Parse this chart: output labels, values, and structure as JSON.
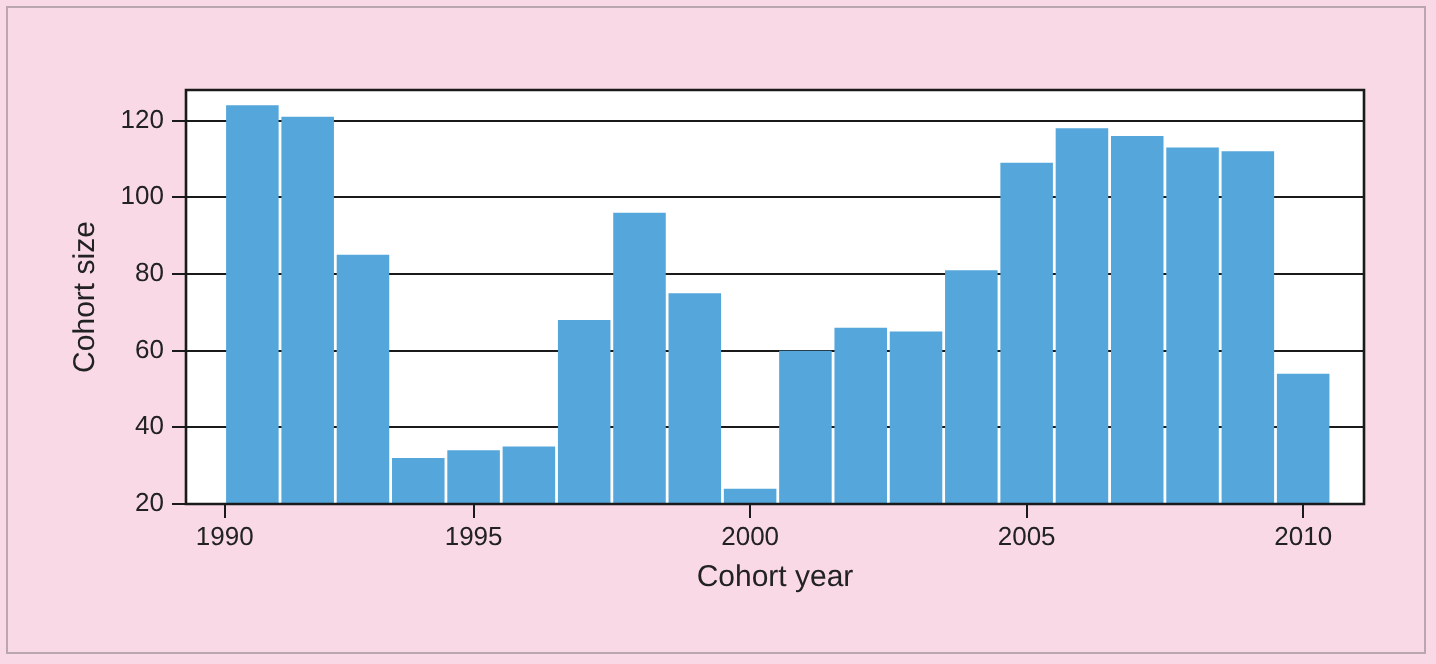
{
  "chart_data": {
    "type": "histogram",
    "xlabel": "Cohort year",
    "ylabel": "Cohort size",
    "bins": [
      1990.5,
      1991.5,
      1992.5,
      1993.5,
      1994.5,
      1995.5,
      1996.5,
      1997.5,
      1998.5,
      1999.5,
      2000.5,
      2001.5,
      2002.5,
      2003.5,
      2004.5,
      2005.5,
      2006.5,
      2007.5,
      2008.5,
      2009.5,
      2010.5
    ],
    "values": [
      124,
      121,
      85,
      32,
      34,
      35,
      68,
      96,
      75,
      24,
      60,
      66,
      65,
      81,
      109,
      118,
      116,
      113,
      112,
      54
    ],
    "color": "#54a6db",
    "xlim": [
      1989.8,
      2011.1
    ],
    "xticks": [
      {
        "value": 1990.5,
        "label": "1990"
      },
      1995,
      2000,
      2005,
      2010
    ],
    "ylim": [
      20,
      128
    ],
    "yticks": [
      20,
      40,
      60,
      80,
      100,
      120
    ],
    "grid": "y",
    "legend": false
  }
}
